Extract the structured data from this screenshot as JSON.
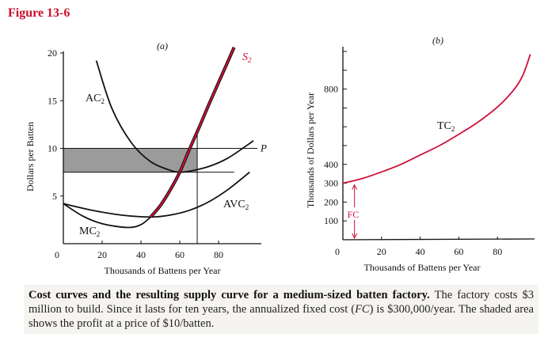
{
  "figure_title": "Figure 13-6",
  "caption": {
    "bold": "Cost curves and the resulting supply curve for a medium-sized batten factory.",
    "part1": " The factory costs $3 million to build. Since it lasts for ten years, the annualized fixed cost (",
    "fc": "FC",
    "part2": ") is $300,000/year. The shaded area shows the profit at a price of $10/batten."
  },
  "colors": {
    "supply": "#d0103a",
    "curve": "#111111",
    "shade": "#8a8a8a",
    "title": "#c8102e"
  },
  "chart_data": [
    {
      "type": "line",
      "panel_label": "(a)",
      "xlabel": "Thousands of Battens per Year",
      "ylabel": "Dollars per Batten",
      "xlim": [
        0,
        100
      ],
      "ylim": [
        0,
        20
      ],
      "xticks": [
        20,
        40,
        60,
        80
      ],
      "yticks": [
        5,
        10,
        15,
        20
      ],
      "origin_label": "0",
      "grid": false,
      "series": [
        {
          "name": "AC2",
          "label": "AC",
          "sub": "2",
          "color": "#111111",
          "x": [
            17,
            25,
            35,
            45,
            55,
            60,
            65,
            75,
            85,
            98
          ],
          "y": [
            19.2,
            14.2,
            10.6,
            8.6,
            7.7,
            7.5,
            7.6,
            8.1,
            9.0,
            10.8
          ]
        },
        {
          "name": "AVC2",
          "label": "AVC",
          "sub": "2",
          "color": "#111111",
          "x": [
            0,
            15,
            30,
            45,
            55,
            65,
            75,
            85,
            96
          ],
          "y": [
            4.2,
            3.5,
            3.0,
            2.8,
            3.0,
            3.5,
            4.4,
            5.7,
            7.5
          ]
        },
        {
          "name": "MC2",
          "label": "MC",
          "sub": "2",
          "color": "#111111",
          "x": [
            0,
            10,
            20,
            33,
            40,
            45
          ],
          "y": [
            4.2,
            2.9,
            2.1,
            1.7,
            2.0,
            2.8
          ]
        },
        {
          "name": "S2",
          "label": "S",
          "sub": "2",
          "color": "#d0103a",
          "x": [
            45,
            50,
            55,
            60,
            65,
            70,
            75,
            80,
            85,
            88
          ],
          "y": [
            2.8,
            4.0,
            5.6,
            7.5,
            9.9,
            12.2,
            14.6,
            16.9,
            19.2,
            20.6
          ]
        }
      ],
      "price_line": {
        "label": "P",
        "price": 10,
        "x_end": 100
      },
      "min_ac_line": {
        "value": 7.5,
        "x_end": 88
      },
      "quantity_line": {
        "x": 69,
        "y_top": 11.5
      },
      "shaded_profit": {
        "x0": 0,
        "x1": 69,
        "y0": 7.5,
        "y1": 10
      }
    },
    {
      "type": "line",
      "panel_label": "(b)",
      "xlabel": "Thousands of Battens per Year",
      "ylabel": "Thousands of Dollars per Year",
      "xlim": [
        0,
        100
      ],
      "ylim": [
        0,
        1000
      ],
      "xticks": [
        20,
        40,
        60,
        80
      ],
      "yticks": [
        100,
        200,
        300,
        400,
        500,
        600,
        700,
        800,
        900,
        1000
      ],
      "ytick_labels": [
        "100",
        "200",
        "300",
        "400",
        "",
        "",
        "",
        "800",
        "",
        ""
      ],
      "origin_label": "0",
      "grid": false,
      "series": [
        {
          "name": "TC2",
          "label": "TC",
          "sub": "2",
          "color": "#d0103a",
          "x": [
            0,
            10,
            20,
            30,
            40,
            50,
            60,
            70,
            80,
            88,
            93,
            97
          ],
          "y": [
            300,
            325,
            360,
            400,
            450,
            500,
            560,
            625,
            705,
            790,
            870,
            985
          ]
        }
      ],
      "fc_annotation": {
        "label": "FC",
        "x": 6,
        "from": 0,
        "to": 300
      }
    }
  ]
}
